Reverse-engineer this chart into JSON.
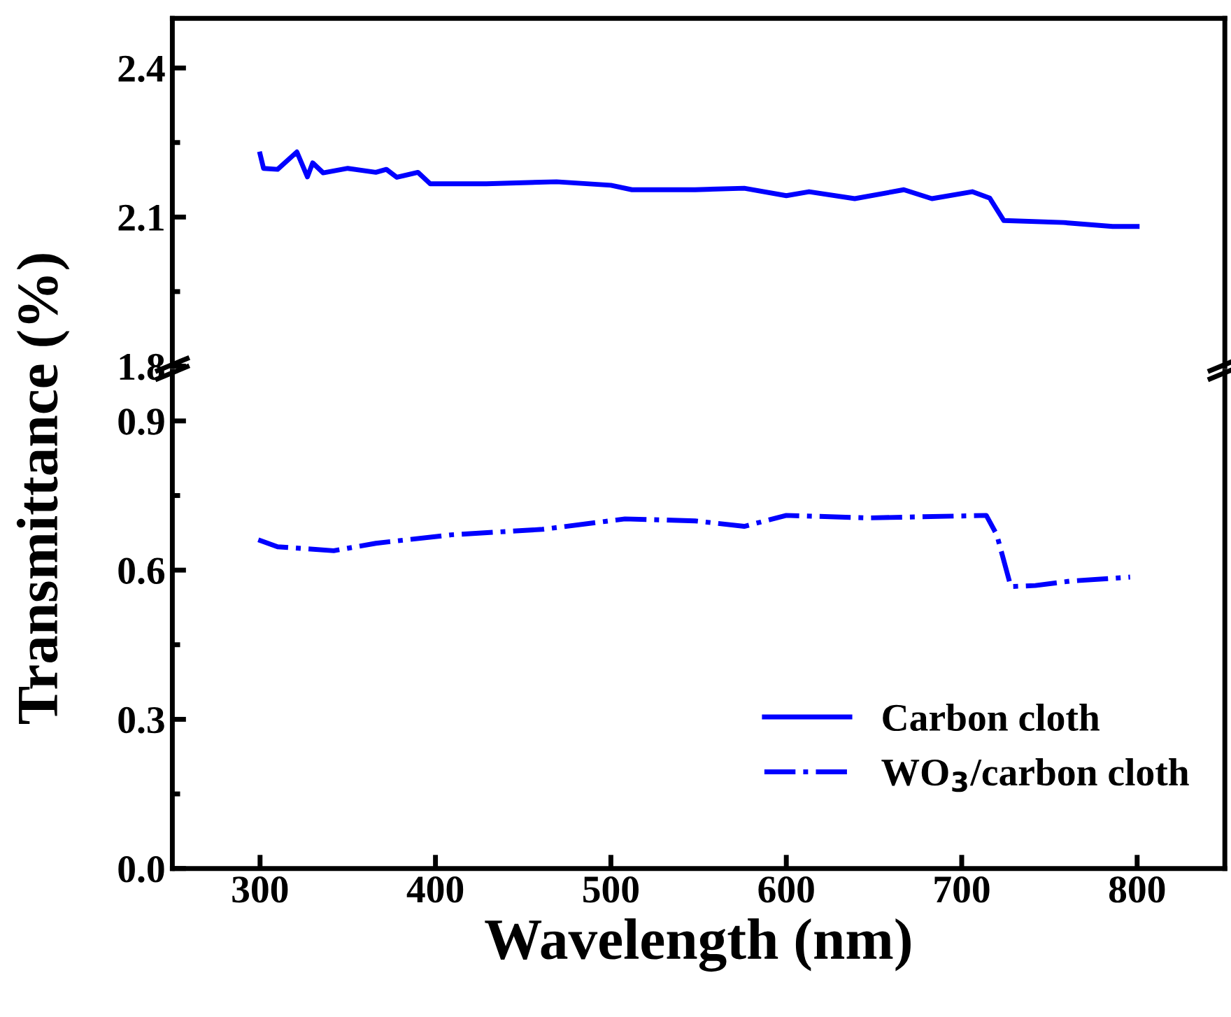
{
  "chart_data": [
    {
      "type": "line",
      "ylim": [
        1.8,
        2.5
      ],
      "yticks": [
        1.8,
        2.1,
        2.4
      ],
      "xlim": [
        250,
        850
      ],
      "tick_labels": "y",
      "series": [
        {
          "name": "Carbon cloth",
          "color": "#0000ff",
          "line_style": "solid",
          "x": [
            300,
            302,
            310,
            321,
            327,
            330,
            336,
            350,
            366,
            372,
            378,
            390,
            397,
            429,
            469,
            500,
            512,
            548,
            576,
            600,
            613,
            639,
            667,
            683,
            706,
            716,
            724,
            758,
            786,
            800
          ],
          "values": [
            2.227,
            2.198,
            2.196,
            2.231,
            2.181,
            2.209,
            2.189,
            2.198,
            2.19,
            2.196,
            2.18,
            2.19,
            2.167,
            2.167,
            2.171,
            2.164,
            2.155,
            2.155,
            2.158,
            2.143,
            2.151,
            2.137,
            2.155,
            2.137,
            2.151,
            2.138,
            2.093,
            2.089,
            2.081,
            2.081
          ]
        }
      ]
    },
    {
      "type": "line",
      "ylim": [
        0,
        1.0
      ],
      "yticks": [
        {
          "value": 0,
          "label": "0.0"
        },
        0.3,
        0.6,
        0.9
      ],
      "xlim": [
        250,
        850
      ],
      "xticks": [
        300,
        400,
        500,
        600,
        700,
        800
      ],
      "xlabel": "Wavelength (nm)",
      "ylabel": "Transmittance (%)",
      "legend": "bottom right",
      "series": [
        {
          "name": "WO$_{3}$/carbon cloth",
          "color": "#0000ff",
          "line_style": "dashdot",
          "x": [
            299,
            310,
            342,
            366,
            409,
            461,
            508,
            548,
            576,
            600,
            647,
            714,
            720,
            728,
            742,
            762,
            796
          ],
          "values": [
            0.661,
            0.647,
            0.639,
            0.654,
            0.671,
            0.682,
            0.703,
            0.699,
            0.688,
            0.71,
            0.705,
            0.71,
            0.671,
            0.567,
            0.569,
            0.578,
            0.586
          ]
        }
      ]
    }
  ]
}
